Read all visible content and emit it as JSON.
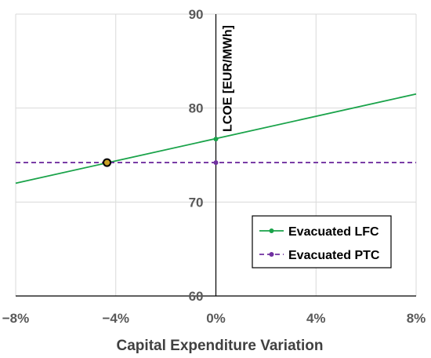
{
  "chart_data": {
    "type": "line",
    "xlabel": "Capital Expenditure Variation",
    "ylabel": "LCOE [EUR/MWh]",
    "xlim": [
      -0.08,
      0.08
    ],
    "ylim": [
      60,
      90
    ],
    "x_ticks": [
      -0.08,
      -0.04,
      0,
      0.04,
      0.08
    ],
    "x_tick_labels": [
      "−8%",
      "−4%",
      "0%",
      "4%",
      "8%"
    ],
    "y_ticks": [
      60,
      70,
      80,
      90
    ],
    "y_tick_labels": [
      "60",
      "70",
      "80",
      "90"
    ],
    "grid": true,
    "legend_position": "bottom-right",
    "series": [
      {
        "name": "Evacuated LFC",
        "color": "#1aa34a",
        "style": "solid",
        "marker_x": [
          0
        ],
        "marker_y": [
          76.7
        ],
        "x": [
          -0.08,
          0.08
        ],
        "y": [
          72.0,
          81.5
        ]
      },
      {
        "name": "Evacuated PTC",
        "color": "#7030a0",
        "style": "dashed",
        "marker_x": [
          0
        ],
        "marker_y": [
          74.2
        ],
        "x": [
          -0.08,
          0.08
        ],
        "y": [
          74.2,
          74.2
        ]
      }
    ],
    "intersection": {
      "x": -0.0435,
      "y": 74.2,
      "color": "#000000",
      "fill": "#c9a227"
    }
  }
}
